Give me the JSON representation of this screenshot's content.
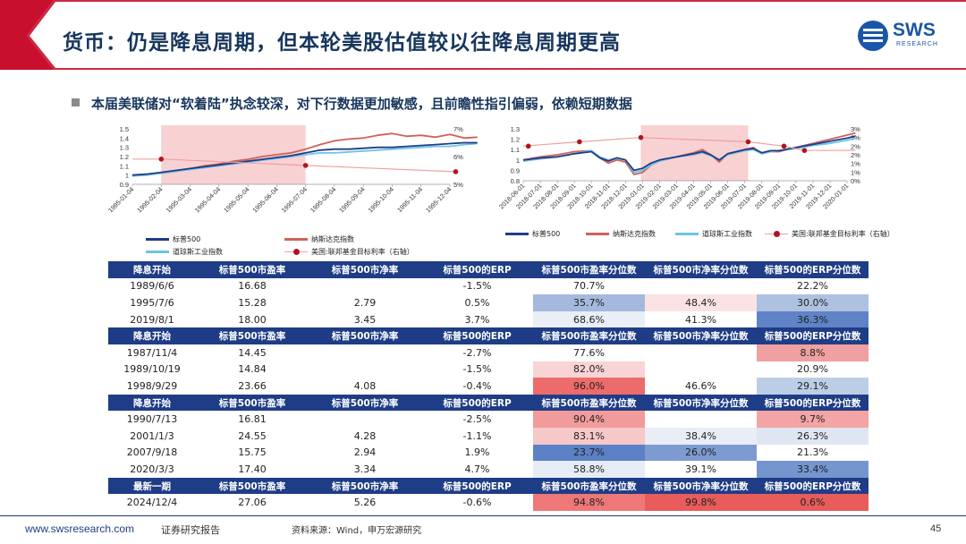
{
  "header": {
    "title": "货币：仍是降息周期，但本轮美股估值较以往降息周期更高",
    "logo_text": "SWS",
    "logo_sub": "RESEARCH"
  },
  "bullet": "本届美联储对“软着陆”执念较深，对下行数据更加敏感，且前瞻性指引偏弱，依赖短期数据",
  "colors": {
    "title_red": "#c8102e",
    "navy": "#1f3d86",
    "sp500": "#1f3d86",
    "nasdaq": "#d0605a",
    "dow": "#6ec4e6",
    "rate": "#f0a0a0",
    "dot": "#b0141e",
    "shade": "#f6c6c8"
  },
  "chart_data": [
    {
      "type": "line",
      "x_ticks": [
        "1995-01-04",
        "1995-02-04",
        "1995-03-04",
        "1995-04-04",
        "1995-05-04",
        "1995-06-04",
        "1995-07-04",
        "1995-08-04",
        "1995-09-04",
        "1995-10-04",
        "1995-11-04",
        "1995-12-04"
      ],
      "y_ticks": [
        "1.5",
        "1.4",
        "1.3",
        "1.2",
        "1.1",
        "1",
        "0.9"
      ],
      "y2_ticks": [
        "7%",
        "6%",
        "5%"
      ],
      "ylim": [
        0.9,
        1.5
      ],
      "y2lim": [
        5,
        7.2
      ],
      "shaded_x": [
        1.0,
        6.0
      ],
      "series": [
        {
          "name": "标普500",
          "axis": "left",
          "x": [
            0,
            0.5,
            1,
            1.5,
            2,
            2.5,
            3,
            3.5,
            4,
            4.5,
            5,
            5.5,
            6,
            6.5,
            7,
            7.5,
            8,
            8.5,
            9,
            9.5,
            10,
            10.5,
            11,
            11.5,
            11.95
          ],
          "values": [
            1.0,
            1.01,
            1.03,
            1.05,
            1.07,
            1.09,
            1.11,
            1.13,
            1.15,
            1.17,
            1.19,
            1.21,
            1.24,
            1.27,
            1.28,
            1.28,
            1.29,
            1.3,
            1.3,
            1.31,
            1.32,
            1.33,
            1.34,
            1.35,
            1.35
          ]
        },
        {
          "name": "纳斯达克指数",
          "axis": "left",
          "x": [
            0,
            0.5,
            1,
            1.5,
            2,
            2.5,
            3,
            3.5,
            4,
            4.5,
            5,
            5.5,
            6,
            6.5,
            7,
            7.5,
            8,
            8.5,
            9,
            9.5,
            10,
            10.5,
            11,
            11.5,
            11.95
          ],
          "values": [
            1.0,
            1.01,
            1.02,
            1.04,
            1.07,
            1.1,
            1.12,
            1.15,
            1.17,
            1.2,
            1.22,
            1.24,
            1.28,
            1.33,
            1.37,
            1.39,
            1.4,
            1.43,
            1.45,
            1.42,
            1.43,
            1.41,
            1.44,
            1.4,
            1.41
          ]
        },
        {
          "name": "道琼斯工业指数",
          "axis": "left",
          "x": [
            0,
            0.5,
            1,
            1.5,
            2,
            2.5,
            3,
            3.5,
            4,
            4.5,
            5,
            5.5,
            6,
            6.5,
            7,
            7.5,
            8,
            8.5,
            9,
            9.5,
            10,
            10.5,
            11,
            11.5,
            11.95
          ],
          "values": [
            0.99,
            1.0,
            1.02,
            1.04,
            1.06,
            1.08,
            1.1,
            1.12,
            1.14,
            1.16,
            1.18,
            1.2,
            1.22,
            1.24,
            1.24,
            1.25,
            1.26,
            1.27,
            1.28,
            1.29,
            1.3,
            1.31,
            1.31,
            1.33,
            1.34
          ]
        },
        {
          "name": "美国:联邦基金目标利率（右轴）",
          "axis": "right",
          "x": [
            0,
            1,
            6,
            11.2
          ],
          "values": [
            6.0,
            6.0,
            5.75,
            5.5
          ]
        }
      ],
      "markers": [
        {
          "x": 1.0,
          "y2": 6.0
        },
        {
          "x": 6.0,
          "y2": 5.75
        },
        {
          "x": 11.2,
          "y2": 5.5
        }
      ]
    },
    {
      "type": "line",
      "x_ticks": [
        "2018-06-01",
        "2018-07-01",
        "2018-08-01",
        "2018-09-01",
        "2018-10-01",
        "2018-11-01",
        "2018-12-01",
        "2019-01-01",
        "2019-02-01",
        "2019-03-01",
        "2019-04-01",
        "2019-05-01",
        "2019-06-01",
        "2019-07-01",
        "2019-08-01",
        "2019-09-01",
        "2019-10-01",
        "2019-11-01",
        "2019-12-01",
        "2020-01-01"
      ],
      "y_ticks": [
        "1.3",
        "1.2",
        "1.1",
        "1",
        "0.9",
        "0.8"
      ],
      "y2_ticks": [
        "3%",
        "3%",
        "2%",
        "2%",
        "1%",
        "1%",
        "0%"
      ],
      "ylim": [
        0.8,
        1.3
      ],
      "y2lim": [
        0,
        3
      ],
      "shaded_x": [
        6.9,
        13.2
      ],
      "series": [
        {
          "name": "标普500",
          "axis": "left",
          "x": [
            0,
            1,
            2,
            3,
            4,
            4.5,
            5,
            5.5,
            6,
            6.5,
            7,
            7.5,
            8,
            9,
            10,
            10.5,
            11,
            11.5,
            12,
            12.5,
            13,
            13.5,
            14,
            14.5,
            15,
            16,
            17,
            18,
            19,
            19.5
          ],
          "values": [
            1.0,
            1.02,
            1.03,
            1.06,
            1.08,
            1.02,
            0.99,
            1.02,
            1.0,
            0.9,
            0.92,
            0.97,
            1.0,
            1.03,
            1.06,
            1.08,
            1.05,
            1.0,
            1.06,
            1.08,
            1.1,
            1.11,
            1.07,
            1.09,
            1.09,
            1.12,
            1.15,
            1.18,
            1.21,
            1.23
          ]
        },
        {
          "name": "纳斯达克指数",
          "axis": "left",
          "x": [
            0,
            1,
            2,
            3,
            4,
            4.5,
            5,
            5.5,
            6,
            6.5,
            7,
            7.5,
            8,
            9,
            10,
            10.5,
            11,
            11.5,
            12,
            12.5,
            13,
            13.5,
            14,
            14.5,
            15,
            16,
            17,
            18,
            19,
            19.5
          ],
          "values": [
            1.0,
            1.03,
            1.05,
            1.08,
            1.09,
            1.02,
            0.97,
            1.0,
            0.98,
            0.86,
            0.88,
            0.95,
            0.99,
            1.03,
            1.07,
            1.1,
            1.05,
            0.98,
            1.06,
            1.08,
            1.1,
            1.12,
            1.06,
            1.08,
            1.08,
            1.12,
            1.16,
            1.2,
            1.24,
            1.26
          ]
        },
        {
          "name": "道琼斯工业指数",
          "axis": "left",
          "x": [
            0,
            1,
            2,
            3,
            4,
            4.5,
            5,
            5.5,
            6,
            6.5,
            7,
            7.5,
            8,
            9,
            10,
            10.5,
            11,
            11.5,
            12,
            12.5,
            13,
            13.5,
            14,
            14.5,
            15,
            16,
            17,
            18,
            19,
            19.5
          ],
          "values": [
            0.99,
            1.01,
            1.03,
            1.06,
            1.09,
            1.03,
            1.0,
            1.02,
            1.0,
            0.88,
            0.9,
            0.95,
            0.99,
            1.03,
            1.05,
            1.07,
            1.04,
            1.0,
            1.05,
            1.07,
            1.09,
            1.1,
            1.06,
            1.08,
            1.09,
            1.11,
            1.14,
            1.16,
            1.19,
            1.21
          ]
        },
        {
          "name": "美国:联邦基金目标利率（右轴）",
          "axis": "right",
          "x": [
            0,
            3.3,
            6.9,
            13.2,
            15.3,
            16.5,
            19.5
          ],
          "values": [
            2.0,
            2.25,
            2.5,
            2.25,
            2.0,
            1.75,
            1.75
          ]
        }
      ],
      "markers": [
        {
          "x": 0.3,
          "y2": 2.0
        },
        {
          "x": 3.3,
          "y2": 2.25
        },
        {
          "x": 6.9,
          "y2": 2.5
        },
        {
          "x": 13.2,
          "y2": 2.25
        },
        {
          "x": 15.3,
          "y2": 2.0
        },
        {
          "x": 16.5,
          "y2": 1.75
        }
      ]
    }
  ],
  "legend1": [
    "标普500",
    "纳斯达克指数",
    "道琼斯工业指数",
    "美国:联邦基金目标利率（右轴）"
  ],
  "legend2": [
    "标普500",
    "纳斯达克指数",
    "道琼斯工业指数",
    "美国:联邦基金目标利率（右轴）"
  ],
  "table": {
    "headers": [
      [
        "降息开始",
        "标普500市盈率",
        "标普500市净率",
        "标普500的ERP",
        "标普500市盈率分位数",
        "标普500市净率分位数",
        "标普500的ERP分位数"
      ],
      [
        "降息开始",
        "标普500市盈率",
        "标普500市净率",
        "标普500的ERP",
        "标普500市盈率分位数",
        "标普500市净率分位数",
        "标普500的ERP分位数"
      ],
      [
        "降息开始",
        "标普500市盈率",
        "标普500市净率",
        "标普500的ERP",
        "标普500市盈率分位数",
        "标普500市净率分位数",
        "标普500的ERP分位数"
      ],
      [
        "最新一期",
        "标普500市盈率",
        "标普500市净率",
        "标普500的ERP",
        "标普500市盈率分位数",
        "标普500市净率分位数",
        "标普500的ERP分位数"
      ]
    ],
    "groups": [
      [
        {
          "date": "1989/6/6",
          "pe": "16.68",
          "pb": "",
          "erp": "-1.5%",
          "pe_q": "70.7%",
          "pb_q": "",
          "erp_q": "22.2%",
          "pe_c": "#ffffff",
          "pb_c": "#ffffff",
          "erp_c": "#ffffff"
        },
        {
          "date": "1995/7/6",
          "pe": "15.28",
          "pb": "2.79",
          "erp": "0.5%",
          "pe_q": "35.7%",
          "pb_q": "48.4%",
          "erp_q": "30.0%",
          "pe_c": "#a4b9dd",
          "pb_c": "#fbe3e3",
          "erp_c": "#aec1e0"
        },
        {
          "date": "2019/8/1",
          "pe": "18.00",
          "pb": "3.45",
          "erp": "3.7%",
          "pe_q": "68.6%",
          "pb_q": "41.3%",
          "erp_q": "36.3%",
          "pe_c": "#e9eef7",
          "pb_c": "#ffffff",
          "erp_c": "#5f83c6"
        }
      ],
      [
        {
          "date": "1987/11/4",
          "pe": "14.45",
          "pb": "",
          "erp": "-2.7%",
          "pe_q": "77.6%",
          "pb_q": "",
          "erp_q": "8.8%",
          "pe_c": "#ffffff",
          "pb_c": "#ffffff",
          "erp_c": "#f0a0a0"
        },
        {
          "date": "1989/10/19",
          "pe": "14.84",
          "pb": "",
          "erp": "-1.5%",
          "pe_q": "82.0%",
          "pb_q": "",
          "erp_q": "20.9%",
          "pe_c": "#f9d4d4",
          "pb_c": "#ffffff",
          "erp_c": "#ffffff"
        },
        {
          "date": "1998/9/29",
          "pe": "23.66",
          "pb": "4.08",
          "erp": "-0.4%",
          "pe_q": "96.0%",
          "pb_q": "46.6%",
          "erp_q": "29.1%",
          "pe_c": "#ec6b6b",
          "pb_c": "#ffffff",
          "erp_c": "#bccde6"
        }
      ],
      [
        {
          "date": "1990/7/13",
          "pe": "16.81",
          "pb": "",
          "erp": "-2.5%",
          "pe_q": "90.4%",
          "pb_q": "",
          "erp_q": "9.7%",
          "pe_c": "#f29b9b",
          "pb_c": "#ffffff",
          "erp_c": "#f3a4a4"
        },
        {
          "date": "2001/1/3",
          "pe": "24.55",
          "pb": "4.28",
          "erp": "-1.1%",
          "pe_q": "83.1%",
          "pb_q": "38.4%",
          "erp_q": "26.3%",
          "pe_c": "#f7c8c8",
          "pb_c": "#e8edf6",
          "erp_c": "#dfe6f2"
        },
        {
          "date": "2007/9/18",
          "pe": "15.75",
          "pb": "2.94",
          "erp": "1.9%",
          "pe_q": "23.7%",
          "pb_q": "26.0%",
          "erp_q": "21.3%",
          "pe_c": "#5b80c4",
          "pb_c": "#7d9bd1",
          "erp_c": "#ffffff"
        },
        {
          "date": "2020/3/3",
          "pe": "17.40",
          "pb": "3.34",
          "erp": "4.7%",
          "pe_q": "58.8%",
          "pb_q": "39.1%",
          "erp_q": "33.4%",
          "pe_c": "#e6ecf6",
          "pb_c": "#ffffff",
          "erp_c": "#7595cf"
        }
      ],
      [
        {
          "date": "2024/12/4",
          "pe": "27.06",
          "pb": "5.26",
          "erp": "-0.6%",
          "pe_q": "94.8%",
          "pb_q": "99.8%",
          "erp_q": "0.6%",
          "pe_c": "#ee7878",
          "pb_c": "#e85c5c",
          "erp_c": "#e85c5c"
        }
      ]
    ]
  },
  "footer": {
    "url": "www.swsresearch.com",
    "tag": "证券研究报告",
    "source": "资料来源：Wind，申万宏源研究",
    "page": "45"
  }
}
